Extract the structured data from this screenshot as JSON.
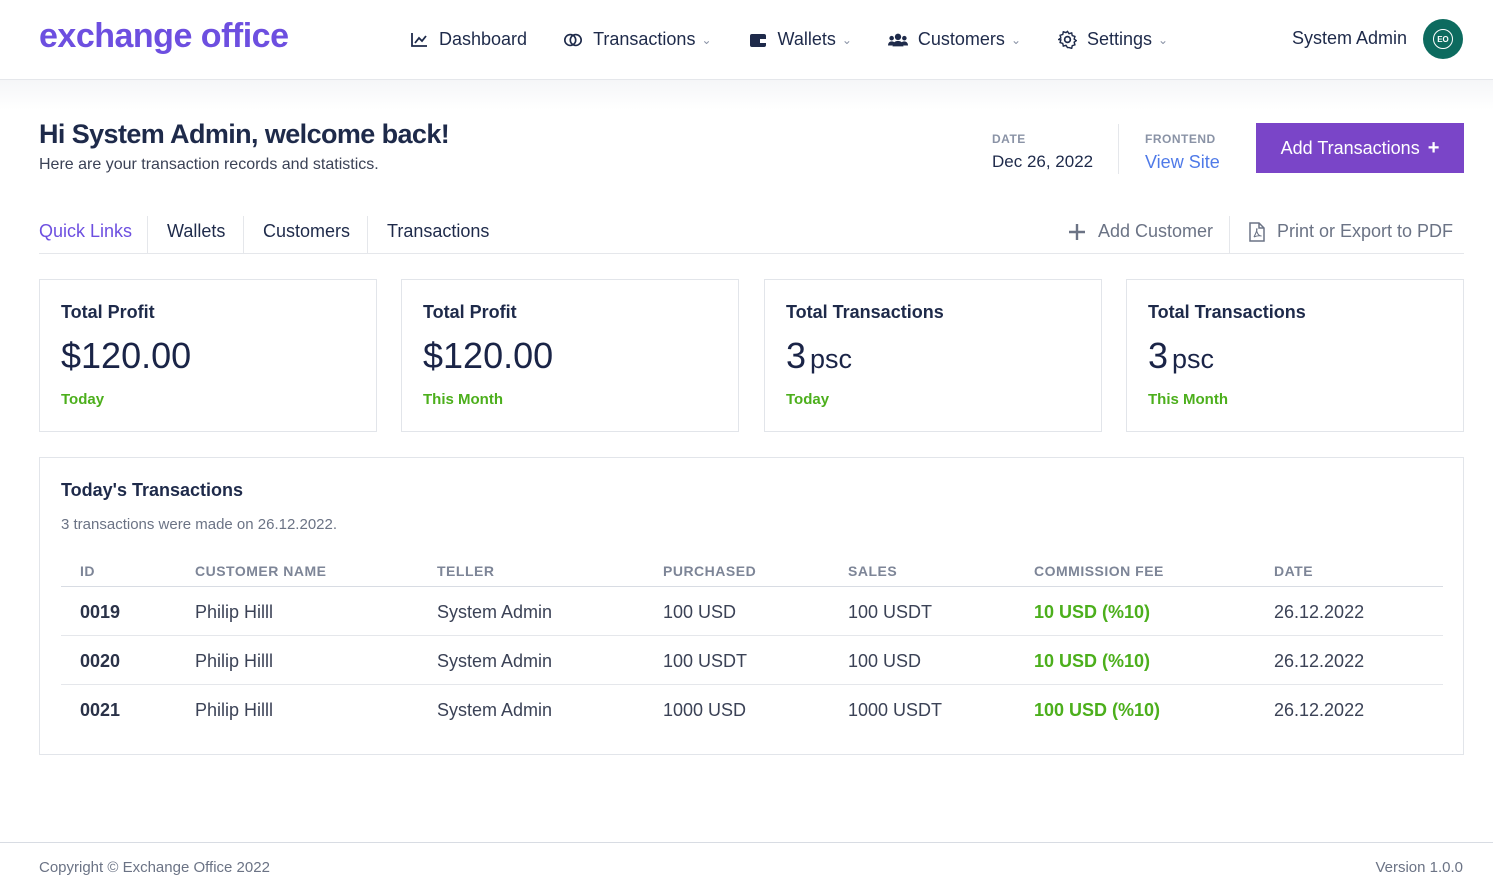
{
  "header": {
    "logo": "exchange office",
    "nav": [
      {
        "label": "Dashboard",
        "icon": "chart-icon",
        "has_dropdown": false
      },
      {
        "label": "Transactions",
        "icon": "exchange-icon",
        "has_dropdown": true
      },
      {
        "label": "Wallets",
        "icon": "wallet-icon",
        "has_dropdown": true
      },
      {
        "label": "Customers",
        "icon": "users-icon",
        "has_dropdown": true
      },
      {
        "label": "Settings",
        "icon": "gear-icon",
        "has_dropdown": true
      }
    ],
    "user_name": "System Admin",
    "avatar_initials": "EO",
    "avatar_color": "#0d6b5f"
  },
  "welcome": {
    "title": "Hi System Admin, welcome back!",
    "subtitle": "Here are your transaction records and statistics."
  },
  "meta": {
    "date_label": "DATE",
    "date_value": "Dec 26, 2022",
    "frontend_label": "FRONTEND",
    "frontend_link": "View Site"
  },
  "add_button": {
    "label": "Add Transactions",
    "icon": "plus-icon"
  },
  "tabs": [
    {
      "label": "Quick Links",
      "active": true
    },
    {
      "label": "Wallets",
      "active": false
    },
    {
      "label": "Customers",
      "active": false
    },
    {
      "label": "Transactions",
      "active": false
    }
  ],
  "tab_actions": {
    "add_customer": "Add Customer",
    "print_export": "Print or Export to PDF"
  },
  "stats": [
    {
      "title": "Total Profit",
      "value": "$120.00",
      "unit": "",
      "period": "Today"
    },
    {
      "title": "Total Profit",
      "value": "$120.00",
      "unit": "",
      "period": "This Month"
    },
    {
      "title": "Total Transactions",
      "value": "3",
      "unit": "psc",
      "period": "Today"
    },
    {
      "title": "Total Transactions",
      "value": "3",
      "unit": "psc",
      "period": "This Month"
    }
  ],
  "transactions": {
    "title": "Today's Transactions",
    "subtitle": "3 transactions were made on 26.12.2022.",
    "columns": [
      "ID",
      "CUSTOMER NAME",
      "TELLER",
      "PURCHASED",
      "SALES",
      "COMMISSION FEE",
      "DATE"
    ],
    "rows": [
      [
        "0019",
        "Philip Hilll",
        "System Admin",
        "100 USD",
        "100 USDT",
        "10 USD (%10)",
        "26.12.2022"
      ],
      [
        "0020",
        "Philip Hilll",
        "System Admin",
        "100 USDT",
        "100 USD",
        "10 USD (%10)",
        "26.12.2022"
      ],
      [
        "0021",
        "Philip Hilll",
        "System Admin",
        "1000 USD",
        "1000 USDT",
        "100 USD (%10)",
        "26.12.2022"
      ]
    ]
  },
  "footer": {
    "copyright": "Copyright © Exchange Office 2022",
    "version": "Version 1.0.0"
  },
  "colors": {
    "brand": "#6d4fe0",
    "button": "#7a45c8",
    "link": "#4f7ae8",
    "positive": "#4caf1c"
  }
}
